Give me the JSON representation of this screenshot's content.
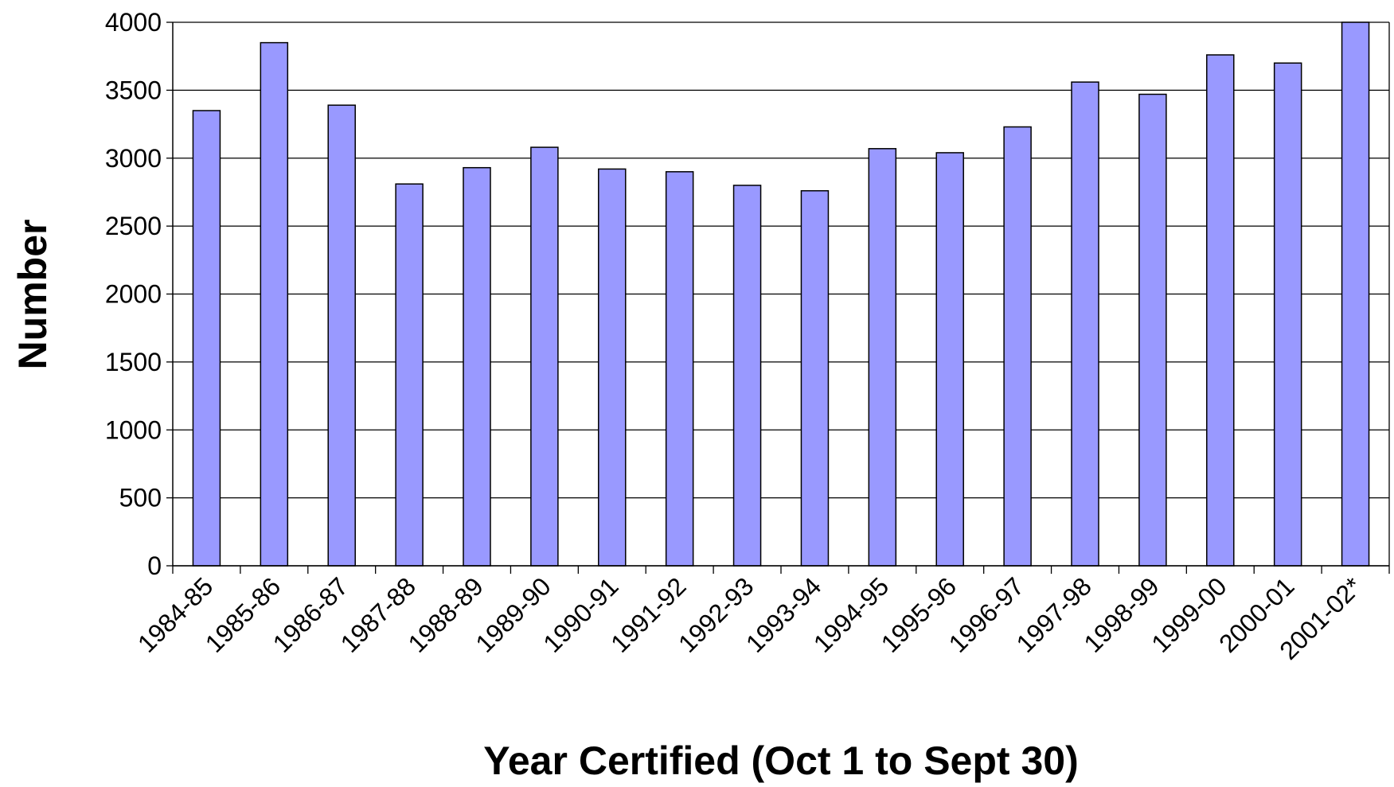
{
  "chart_data": {
    "type": "bar",
    "x_label": "Year Certified (Oct 1 to Sept 30)",
    "y_label": "Number",
    "categories": [
      "1984-85",
      "1985-86",
      "1986-87",
      "1987-88",
      "1988-89",
      "1989-90",
      "1990-91",
      "1991-92",
      "1992-93",
      "1993-94",
      "1994-95",
      "1995-96",
      "1996-97",
      "1997-98",
      "1998-99",
      "1999-00",
      "2000-01",
      "2001-02*"
    ],
    "values": [
      3350,
      3850,
      3390,
      2810,
      2930,
      3080,
      2920,
      2900,
      2800,
      2760,
      3070,
      3040,
      3230,
      3560,
      3470,
      3760,
      3700,
      4000
    ],
    "color": "#9999ff",
    "ylim": [
      0,
      4000
    ],
    "yticks": [
      0,
      500,
      1000,
      1500,
      2000,
      2500,
      3000,
      3500,
      4000
    ],
    "grid": true
  }
}
